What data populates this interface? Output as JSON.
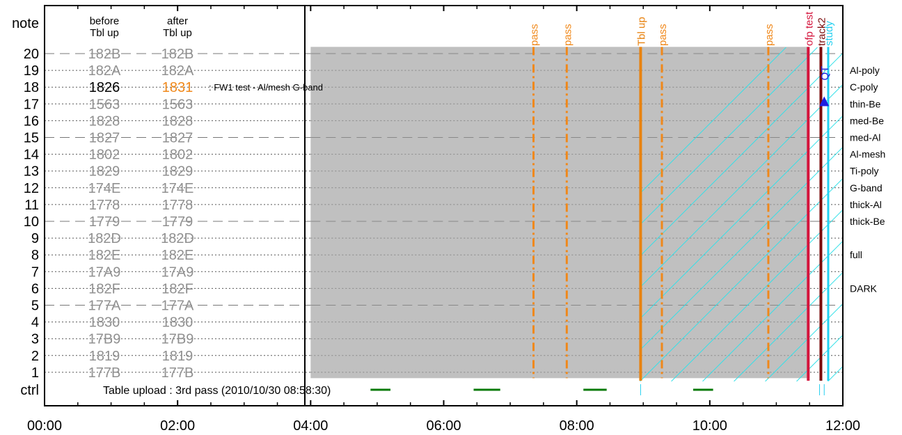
{
  "chart_data": {
    "type": "timeline",
    "title": "",
    "y_label": "note",
    "ctrl_label": "ctrl",
    "rows": [
      1,
      2,
      3,
      4,
      5,
      6,
      7,
      8,
      9,
      10,
      11,
      12,
      13,
      14,
      15,
      16,
      17,
      18,
      19,
      20
    ],
    "x_ticks": [
      "00:00",
      "02:00",
      "04:00",
      "06:00",
      "08:00",
      "10:00",
      "12:00"
    ],
    "x_range_hours": [
      0,
      12
    ],
    "column_headers": {
      "before": [
        "before",
        "Tbl up"
      ],
      "after": [
        "after",
        "Tbl up"
      ]
    },
    "table_entries": [
      {
        "row": 20,
        "before": "182B",
        "after": "182B",
        "struck": true
      },
      {
        "row": 19,
        "before": "182A",
        "after": "182A",
        "struck": true
      },
      {
        "row": 18,
        "before": "1826",
        "after": "1831",
        "struck": false,
        "note": ": FW1 test - Al/mesh G-band"
      },
      {
        "row": 17,
        "before": "1563",
        "after": "1563",
        "struck": true
      },
      {
        "row": 16,
        "before": "1828",
        "after": "1828",
        "struck": true
      },
      {
        "row": 15,
        "before": "1827",
        "after": "1827",
        "struck": true
      },
      {
        "row": 14,
        "before": "1802",
        "after": "1802",
        "struck": true
      },
      {
        "row": 13,
        "before": "1829",
        "after": "1829",
        "struck": true
      },
      {
        "row": 12,
        "before": "174E",
        "after": "174E",
        "struck": true
      },
      {
        "row": 11,
        "before": "1778",
        "after": "1778",
        "struck": true
      },
      {
        "row": 10,
        "before": "1779",
        "after": "1779",
        "struck": true
      },
      {
        "row": 9,
        "before": "182D",
        "after": "182D",
        "struck": true
      },
      {
        "row": 8,
        "before": "182E",
        "after": "182E",
        "struck": true
      },
      {
        "row": 7,
        "before": "17A9",
        "after": "17A9",
        "struck": true
      },
      {
        "row": 6,
        "before": "182F",
        "after": "182F",
        "struck": true
      },
      {
        "row": 5,
        "before": "177A",
        "after": "177A",
        "struck": true
      },
      {
        "row": 4,
        "before": "1830",
        "after": "1830",
        "struck": true
      },
      {
        "row": 3,
        "before": "17B9",
        "after": "17B9",
        "struck": true
      },
      {
        "row": 2,
        "before": "1819",
        "after": "1819",
        "struck": true
      },
      {
        "row": 1,
        "before": "177B",
        "after": "177B",
        "struck": true
      }
    ],
    "filter_labels": [
      {
        "row": 19,
        "text": "Al-poly"
      },
      {
        "row": 18,
        "text": "C-poly"
      },
      {
        "row": 17,
        "text": "thin-Be"
      },
      {
        "row": 16,
        "text": "med-Be"
      },
      {
        "row": 15,
        "text": "med-Al"
      },
      {
        "row": 14,
        "text": "Al-mesh"
      },
      {
        "row": 13,
        "text": "Ti-poly"
      },
      {
        "row": 12,
        "text": "G-band"
      },
      {
        "row": 11,
        "text": "thick-Al"
      },
      {
        "row": 10,
        "text": "thick-Be"
      },
      {
        "row": 8,
        "text": "full"
      },
      {
        "row": 6,
        "text": "DARK"
      }
    ],
    "caption": "Table upload : 3rd pass (2010/10/30 08:58:30)",
    "gray_band_hours": [
      4.0,
      11.5
    ],
    "hatch_start_hour": 8.95,
    "pass_lines": [
      {
        "hour": 7.35,
        "label": "pass"
      },
      {
        "hour": 7.85,
        "label": "pass"
      },
      {
        "hour": 9.28,
        "label": "pass"
      },
      {
        "hour": 10.88,
        "label": "pass"
      }
    ],
    "event_lines": [
      {
        "hour": 8.96,
        "label": "Tbl up",
        "color": "#e8820f"
      },
      {
        "hour": 11.48,
        "label": "ofp test",
        "color": "#d4143c"
      },
      {
        "hour": 11.67,
        "label": "track2",
        "color": "#7a0a0a"
      },
      {
        "hour": 11.78,
        "label": "study",
        "color": "#25d0f0"
      }
    ],
    "ctrl_segments": [
      {
        "start": 4.9,
        "end": 5.2
      },
      {
        "start": 6.45,
        "end": 6.85
      },
      {
        "start": 8.1,
        "end": 8.45
      },
      {
        "start": 9.75,
        "end": 10.05
      }
    ],
    "marker": {
      "hour": 11.72,
      "row": 17.2,
      "label": "QT"
    }
  }
}
